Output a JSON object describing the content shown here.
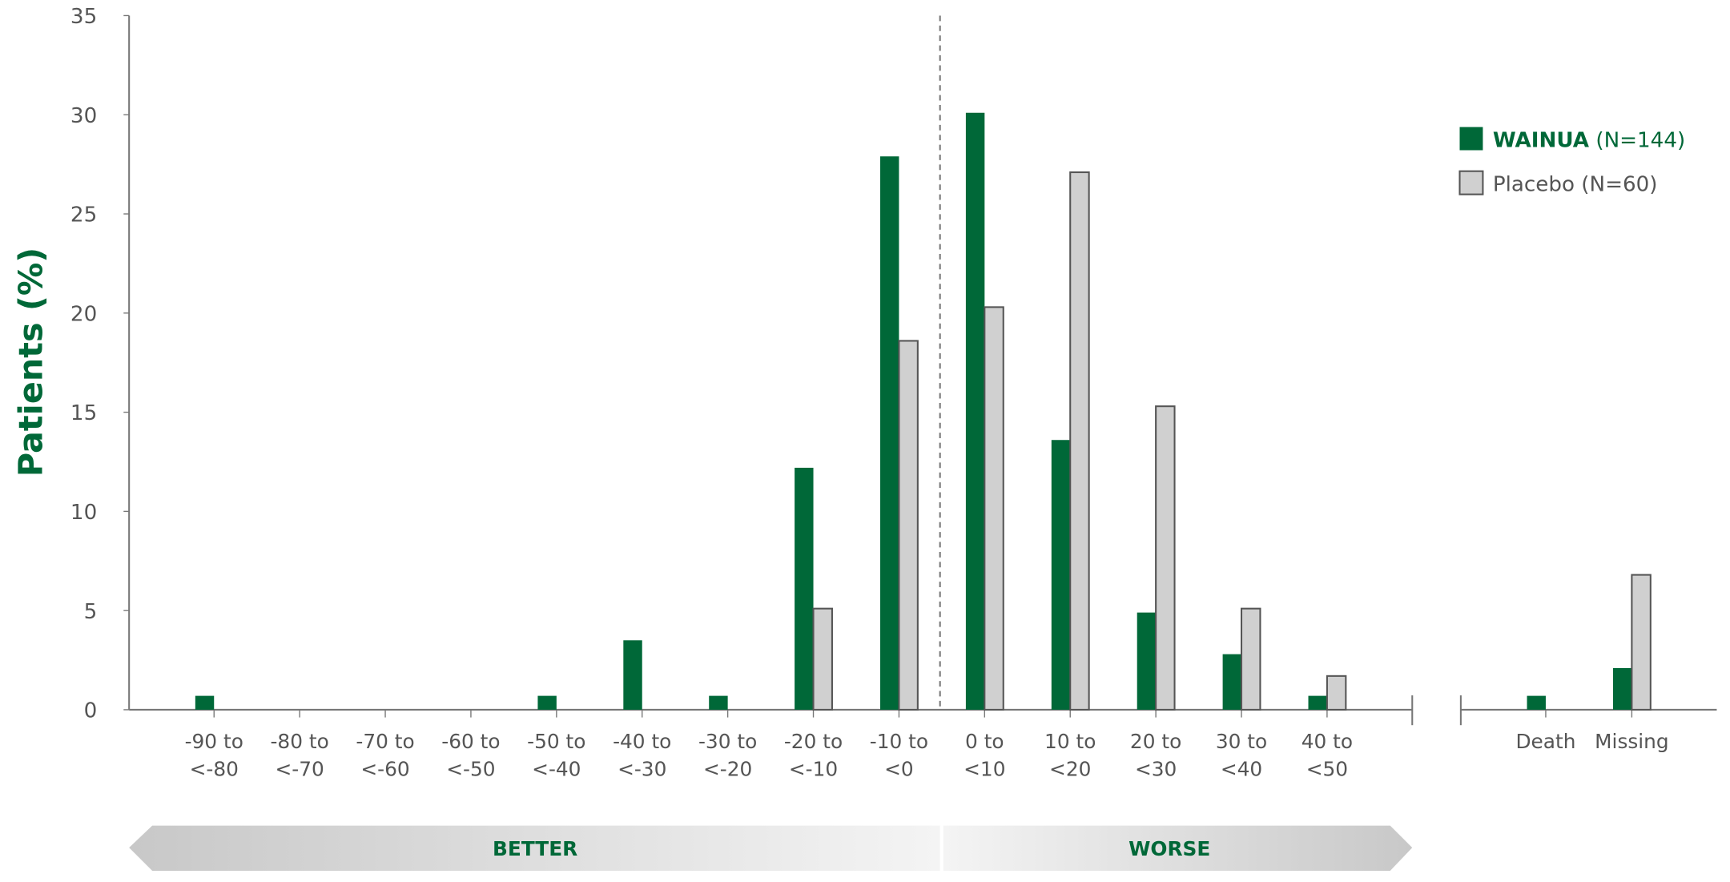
{
  "chart_data": [
    {
      "type": "bar",
      "ylabel": "Patients (%)",
      "categories": [
        "-90 to\n<-80",
        "-80 to\n<-70",
        "-70 to\n<-60",
        "-60 to\n<-50",
        "-50 to\n<-40",
        "-40 to\n<-30",
        "-30 to\n<-20",
        "-20 to\n<-10",
        "-10 to\n<0",
        "0 to\n<10",
        "10 to\n<20",
        "20 to\n<30",
        "30 to\n<40",
        "40 to\n<50"
      ],
      "series": [
        {
          "name": "WAINUA",
          "count_label": "(N=144)",
          "color": "#006838",
          "values": [
            0.7,
            0,
            0,
            0,
            0.7,
            3.5,
            0.7,
            12.2,
            27.9,
            30.1,
            13.6,
            4.9,
            2.8,
            0.7
          ]
        },
        {
          "name": "Placebo",
          "count_label": "(N=60)",
          "color": "#d0d0d0",
          "values": [
            0,
            0,
            0,
            0,
            0,
            0,
            0,
            5.1,
            18.6,
            20.3,
            27.1,
            15.3,
            5.1,
            1.7
          ]
        }
      ],
      "ylim": [
        0,
        35
      ],
      "yticks": [
        0,
        5,
        10,
        15,
        20,
        25,
        30,
        35
      ],
      "direction_labels": [
        "BETTER",
        "WORSE"
      ],
      "legend": "upper right"
    },
    {
      "type": "bar",
      "categories": [
        "Death",
        "Missing"
      ],
      "series": [
        {
          "name": "WAINUA",
          "color": "#006838",
          "values": [
            0.7,
            2.1
          ]
        },
        {
          "name": "Placebo",
          "color": "#d0d0d0",
          "values": [
            0,
            6.8
          ]
        }
      ],
      "ylim": [
        0,
        35
      ]
    }
  ]
}
